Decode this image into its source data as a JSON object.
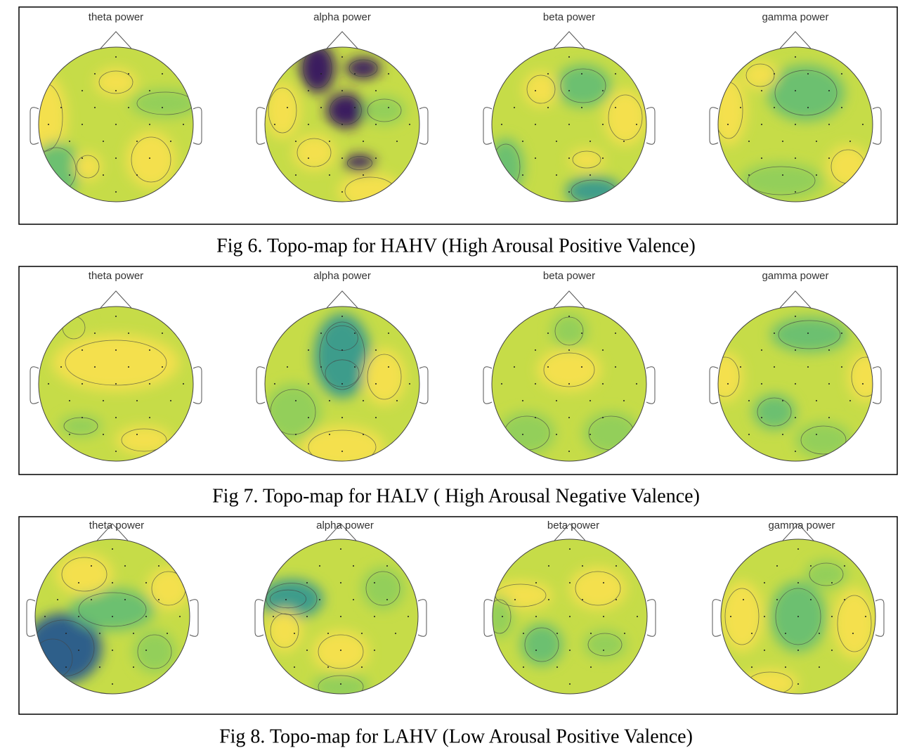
{
  "figures": [
    {
      "panels": [
        "theta power",
        "alpha power",
        "beta power",
        "gamma power"
      ],
      "caption": "Fig 6. Topo-map for HAHV (High Arousal Positive Valence)"
    },
    {
      "panels": [
        "theta power",
        "alpha power",
        "beta power",
        "gamma power"
      ],
      "caption": "Fig 7. Topo-map for HALV ( High Arousal Negative Valence)"
    },
    {
      "panels": [
        "theta power",
        "alpha power",
        "beta power",
        "gamma power"
      ],
      "caption": "Fig 8. Topo-map for LAHV (Low Arousal Positive Valence)"
    }
  ]
}
